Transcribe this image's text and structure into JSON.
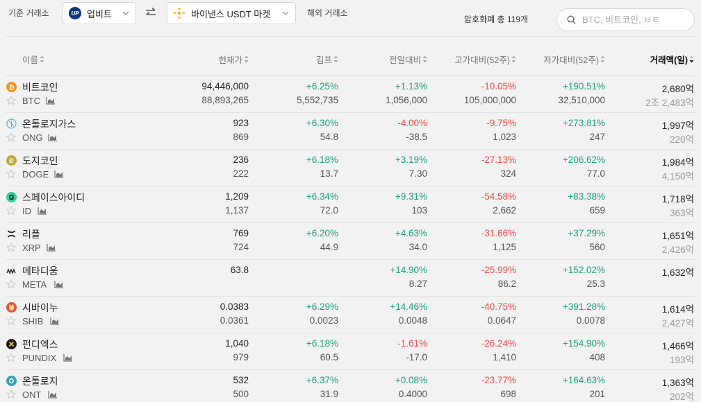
{
  "header": {
    "base_exchange_label": "기준 거래소",
    "base_exchange": "업비트",
    "foreign_exchange": "바이낸스 USDT 마켓",
    "foreign_exchange_label": "해외 거래소",
    "total_coins": "암호화폐 총 119개",
    "search_placeholder": "BTC, 비트코인, ㅂㅌ",
    "colors": {
      "upbit": "#093687",
      "binance": "#f0b90b",
      "up": "#1aa37e",
      "down": "#ef4b4b"
    }
  },
  "table": {
    "columns": [
      "이름",
      "현재가",
      "김프",
      "전일대비",
      "고가대비(52주)",
      "저가대비(52주)",
      "거래액(일)"
    ],
    "active_sort_column": "거래액(일)",
    "rows": [
      {
        "name": "비트코인",
        "ticker": "BTC",
        "icon": "bitcoin-icon",
        "icon_color": "#f7931a",
        "price": "94,446,000",
        "price_foreign": "88,893,265",
        "kimp": "+6.25%",
        "kimp_diff": "5,552,735",
        "kimp_dir": "up",
        "day": "+1.13%",
        "day_diff": "1,056,000",
        "day_dir": "up",
        "high": "-10.05%",
        "high_val": "105,000,000",
        "high_dir": "down",
        "low": "+190.51%",
        "low_val": "32,510,000",
        "low_dir": "up",
        "vol": "2,680억",
        "vol_foreign": "2조 2,483억"
      },
      {
        "name": "온톨로지가스",
        "ticker": "ONG",
        "icon": "ong-icon",
        "icon_color": "#5ab0d8",
        "price": "923",
        "price_foreign": "869",
        "kimp": "+6.30%",
        "kimp_diff": "54.8",
        "kimp_dir": "up",
        "day": "-4.00%",
        "day_diff": "-38.5",
        "day_dir": "down",
        "high": "-9.75%",
        "high_val": "1,023",
        "high_dir": "down",
        "low": "+273.81%",
        "low_val": "247",
        "low_dir": "up",
        "vol": "1,997억",
        "vol_foreign": "220억"
      },
      {
        "name": "도지코인",
        "ticker": "DOGE",
        "icon": "dogecoin-icon",
        "icon_color": "#c2a633",
        "price": "236",
        "price_foreign": "222",
        "kimp": "+6.18%",
        "kimp_diff": "13.7",
        "kimp_dir": "up",
        "day": "+3.19%",
        "day_diff": "7.30",
        "day_dir": "up",
        "high": "-27.13%",
        "high_val": "324",
        "high_dir": "down",
        "low": "+206.62%",
        "low_val": "77.0",
        "low_dir": "up",
        "vol": "1,984억",
        "vol_foreign": "4,150억"
      },
      {
        "name": "스페이스아이디",
        "ticker": "ID",
        "icon": "space-id-icon",
        "icon_color": "#2ad39a",
        "price": "1,209",
        "price_foreign": "1,137",
        "kimp": "+6.34%",
        "kimp_diff": "72.0",
        "kimp_dir": "up",
        "day": "+9.31%",
        "day_diff": "103",
        "day_dir": "up",
        "high": "-54.58%",
        "high_val": "2,662",
        "high_dir": "down",
        "low": "+83.38%",
        "low_val": "659",
        "low_dir": "up",
        "vol": "1,718억",
        "vol_foreign": "363억"
      },
      {
        "name": "리플",
        "ticker": "XRP",
        "icon": "xrp-icon",
        "icon_color": "#222222",
        "price": "769",
        "price_foreign": "724",
        "kimp": "+6.20%",
        "kimp_diff": "44.9",
        "kimp_dir": "up",
        "day": "+4.63%",
        "day_diff": "34.0",
        "day_dir": "up",
        "high": "-31.66%",
        "high_val": "1,125",
        "high_dir": "down",
        "low": "+37.29%",
        "low_val": "560",
        "low_dir": "up",
        "vol": "1,651억",
        "vol_foreign": "2,426억"
      },
      {
        "name": "메타디움",
        "ticker": "META",
        "icon": "metadium-icon",
        "icon_color": "#222222",
        "price": "63.8",
        "price_foreign": "",
        "kimp": "",
        "kimp_diff": "",
        "kimp_dir": "up",
        "day": "+14.90%",
        "day_diff": "8.27",
        "day_dir": "up",
        "high": "-25.99%",
        "high_val": "86.2",
        "high_dir": "down",
        "low": "+152.02%",
        "low_val": "25.3",
        "low_dir": "up",
        "vol": "1,632억",
        "vol_foreign": ""
      },
      {
        "name": "시바이누",
        "ticker": "SHIB",
        "icon": "shiba-inu-icon",
        "icon_color": "#e4572e",
        "price": "0.0383",
        "price_foreign": "0.0361",
        "kimp": "+6.29%",
        "kimp_diff": "0.0023",
        "kimp_dir": "up",
        "day": "+14.46%",
        "day_diff": "0.0048",
        "day_dir": "up",
        "high": "-40.75%",
        "high_val": "0.0647",
        "high_dir": "down",
        "low": "+391.28%",
        "low_val": "0.0078",
        "low_dir": "up",
        "vol": "1,614억",
        "vol_foreign": "2,427억"
      },
      {
        "name": "펀디엑스",
        "ticker": "PUNDIX",
        "icon": "pundix-icon",
        "icon_color": "#1a1a1a",
        "price": "1,040",
        "price_foreign": "979",
        "kimp": "+6.18%",
        "kimp_diff": "60.5",
        "kimp_dir": "up",
        "day": "-1.61%",
        "day_diff": "-17.0",
        "day_dir": "down",
        "high": "-26.24%",
        "high_val": "1,410",
        "high_dir": "down",
        "low": "+154.90%",
        "low_val": "408",
        "low_dir": "up",
        "vol": "1,466억",
        "vol_foreign": "193억"
      },
      {
        "name": "온톨로지",
        "ticker": "ONT",
        "icon": "ontology-icon",
        "icon_color": "#32a4be",
        "price": "532",
        "price_foreign": "500",
        "kimp": "+6.37%",
        "kimp_diff": "31.9",
        "kimp_dir": "up",
        "day": "+0.08%",
        "day_diff": "0.4000",
        "day_dir": "up",
        "high": "-23.77%",
        "high_val": "698",
        "high_dir": "down",
        "low": "+164.63%",
        "low_val": "201",
        "low_dir": "up",
        "vol": "1,363억",
        "vol_foreign": "202억"
      }
    ]
  }
}
